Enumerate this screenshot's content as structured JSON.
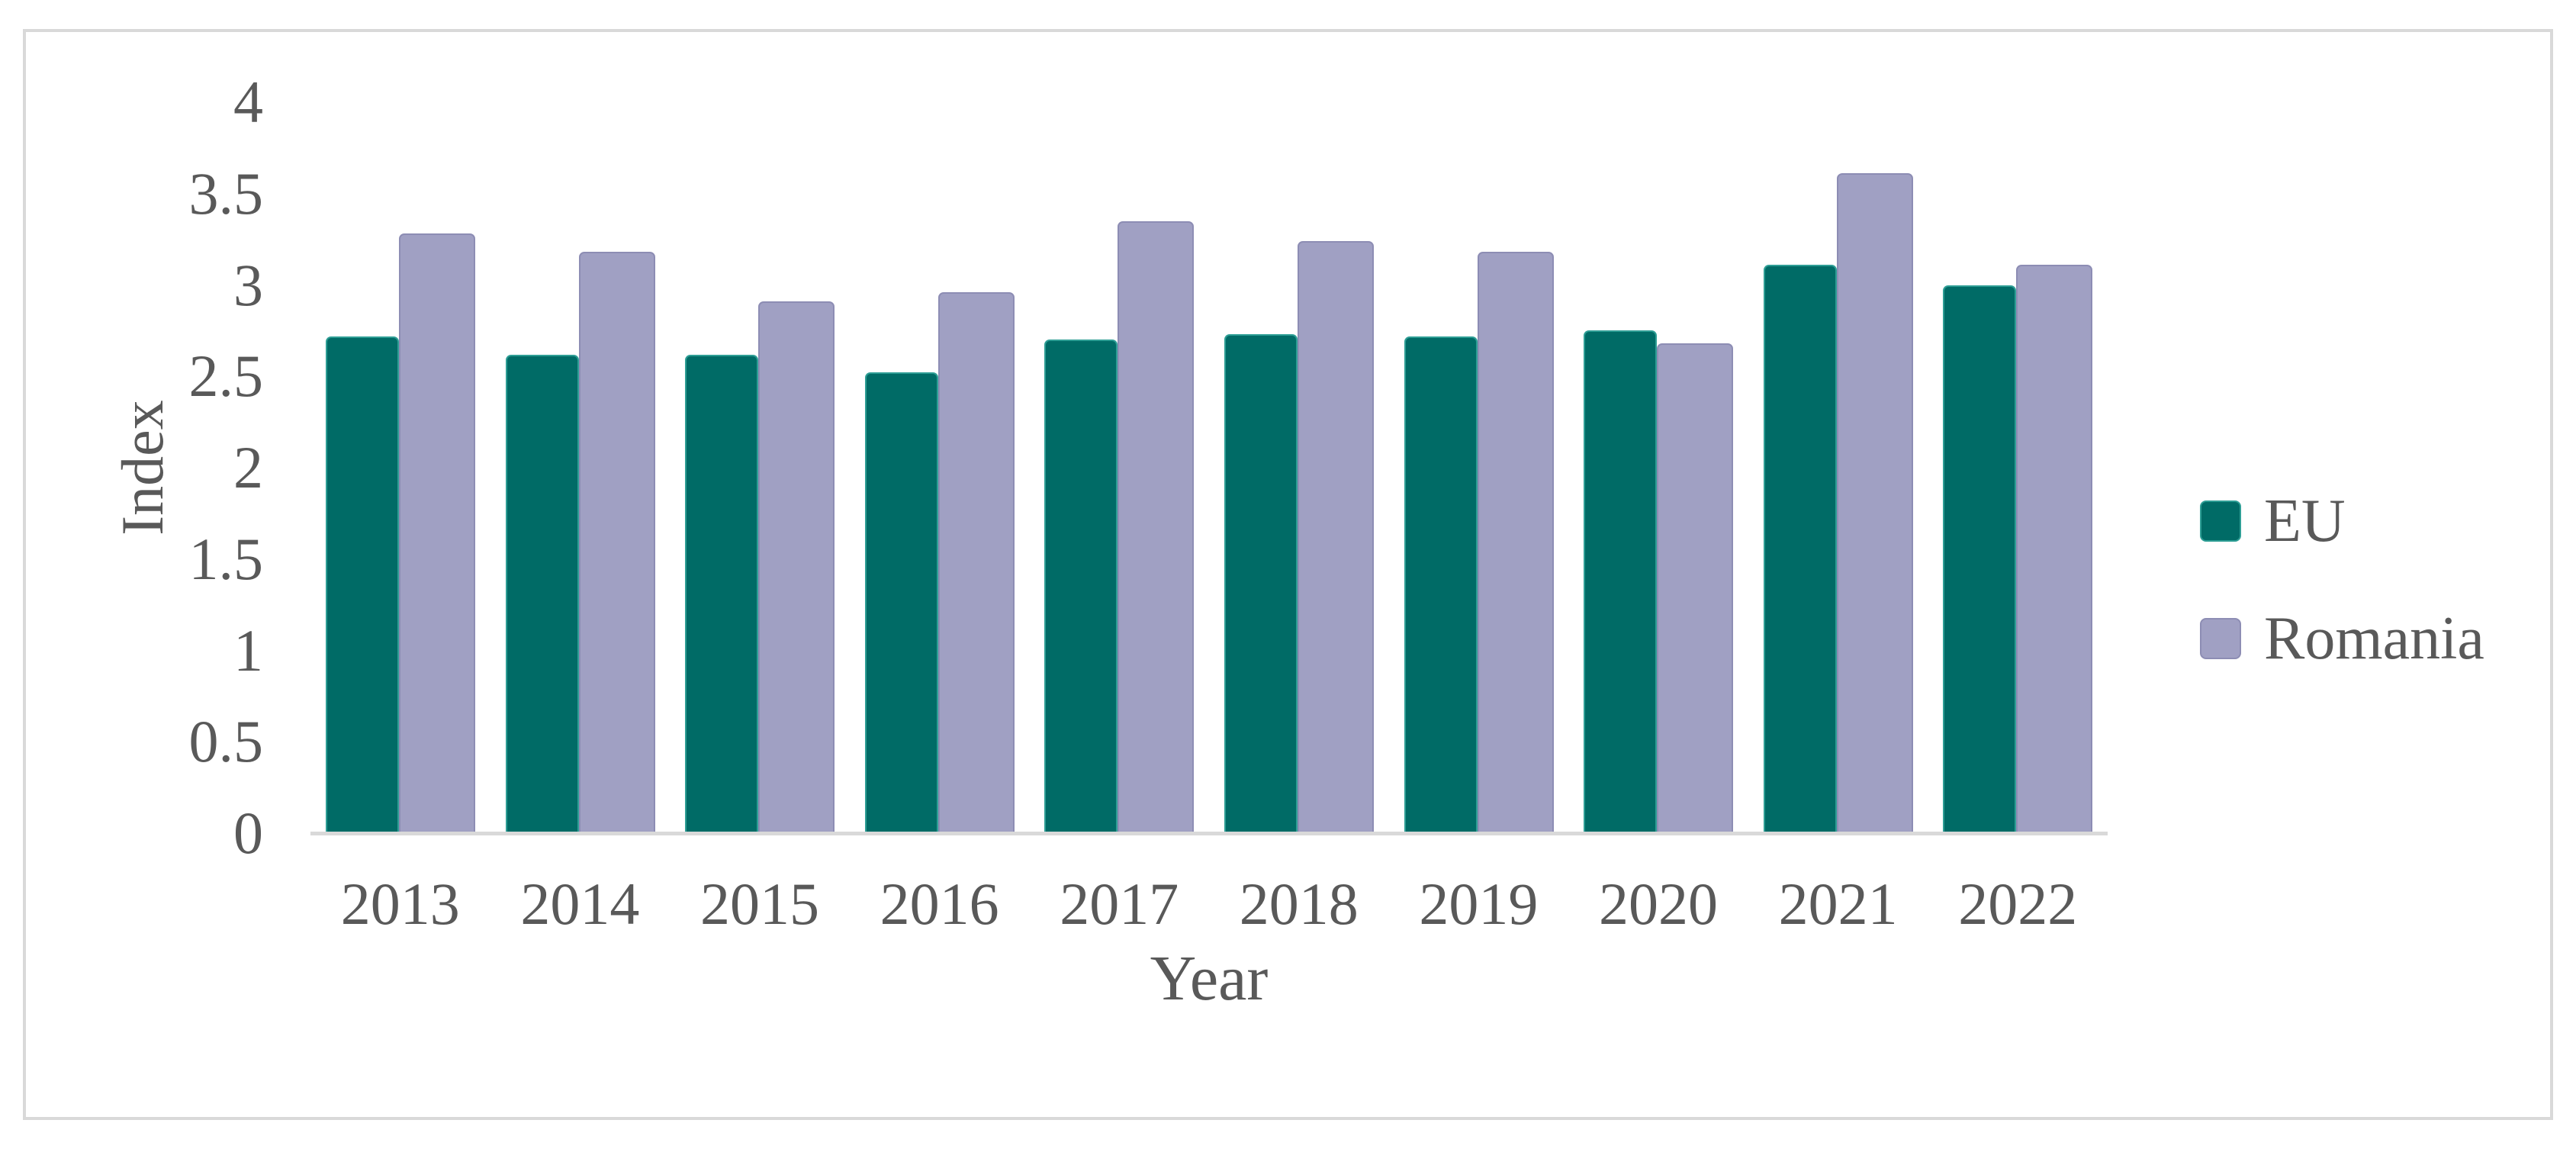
{
  "chart_data": {
    "type": "bar",
    "title": "",
    "categories": [
      "2013",
      "2014",
      "2015",
      "2016",
      "2017",
      "2018",
      "2019",
      "2020",
      "2021",
      "2022"
    ],
    "series": [
      {
        "name": "EU",
        "color": "#006B66",
        "border_color": "#2E9E95",
        "values": [
          2.72,
          2.62,
          2.62,
          2.52,
          2.7,
          2.73,
          2.72,
          2.75,
          3.11,
          3.0
        ]
      },
      {
        "name": "Romania",
        "color": "#A0A0C3",
        "border_color": "#8D8DB4",
        "values": [
          3.28,
          3.18,
          2.91,
          2.96,
          3.35,
          3.24,
          3.18,
          2.68,
          3.61,
          3.11
        ]
      }
    ],
    "xlabel": "Year",
    "ylabel": "Index",
    "ylim": [
      0,
      4
    ],
    "yticks": [
      0,
      0.5,
      1,
      1.5,
      2,
      2.5,
      3,
      3.5,
      4
    ],
    "grid": false,
    "legend_position": "right",
    "legend": [
      "EU",
      "Romania"
    ]
  },
  "colors": {
    "background": "#FFFFFF",
    "figure_border": "#D9D9D9",
    "axis_line": "#D9D9D9",
    "text": "#595959"
  }
}
